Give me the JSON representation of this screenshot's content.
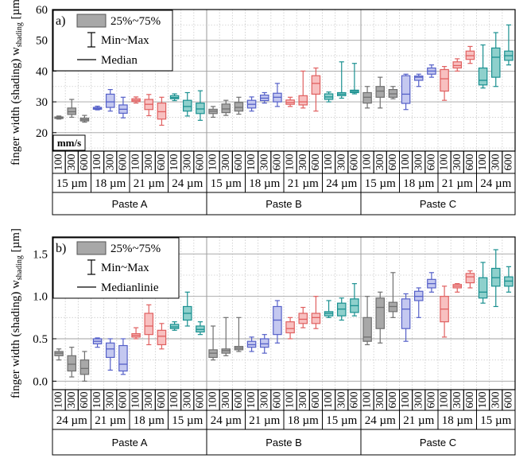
{
  "chart_data": [
    {
      "type": "boxplot",
      "panel_label": "a)",
      "ylabel_main": "finger width (shading) w",
      "ylabel_sub": "shading",
      "ylabel_unit": " [µm]",
      "ylim": [
        14,
        60
      ],
      "yticks": [
        20,
        30,
        40,
        50,
        60
      ],
      "grid": true,
      "legend": {
        "placement": "top-left",
        "box": "25%~75%",
        "whisker": "Min~Max",
        "median": "Median"
      },
      "speed_label": "mm/s",
      "pastes": [
        "Paste A",
        "Paste B",
        "Paste C"
      ],
      "widths": [
        "15 µm",
        "18 µm",
        "21 µm",
        "24 µm"
      ],
      "speeds": [
        "100",
        "300",
        "600"
      ],
      "series": [
        {
          "paste": "Paste A",
          "width": "15 µm",
          "color": "#707070",
          "fill": "#a8a8a8",
          "boxes": [
            {
              "speed": "100",
              "min": 24.4,
              "q1": 24.6,
              "median": 24.8,
              "q3": 25.1,
              "max": 25.4
            },
            {
              "speed": "300",
              "min": 25.0,
              "q1": 25.9,
              "median": 26.8,
              "q3": 28.0,
              "max": 30.8
            },
            {
              "speed": "600",
              "min": 23.4,
              "q1": 23.8,
              "median": 24.2,
              "q3": 24.7,
              "max": 25.6
            }
          ]
        },
        {
          "paste": "Paste A",
          "width": "18 µm",
          "color": "#5560c8",
          "fill": "#c4c8f0",
          "boxes": [
            {
              "speed": "100",
              "min": 27.4,
              "q1": 27.6,
              "median": 27.9,
              "q3": 28.2,
              "max": 28.6
            },
            {
              "speed": "300",
              "min": 27.0,
              "q1": 28.2,
              "median": 30.0,
              "q3": 32.5,
              "max": 34.0
            },
            {
              "speed": "600",
              "min": 24.8,
              "q1": 26.3,
              "median": 27.6,
              "q3": 29.0,
              "max": 31.5
            }
          ]
        },
        {
          "paste": "Paste A",
          "width": "21 µm",
          "color": "#e06060",
          "fill": "#f8c0c0",
          "boxes": [
            {
              "speed": "100",
              "min": 29.6,
              "q1": 30.1,
              "median": 30.5,
              "q3": 31.0,
              "max": 31.6
            },
            {
              "speed": "300",
              "min": 25.5,
              "q1": 27.5,
              "median": 29.2,
              "q3": 30.8,
              "max": 32.4
            },
            {
              "speed": "600",
              "min": 22.4,
              "q1": 24.4,
              "median": 26.8,
              "q3": 29.6,
              "max": 31.5
            }
          ]
        },
        {
          "paste": "Paste A",
          "width": "24 µm",
          "color": "#1a9090",
          "fill": "#8ed0cc",
          "boxes": [
            {
              "speed": "100",
              "min": 30.4,
              "q1": 31.0,
              "median": 31.4,
              "q3": 32.0,
              "max": 32.6
            },
            {
              "speed": "300",
              "min": 25.4,
              "q1": 27.0,
              "median": 28.5,
              "q3": 30.5,
              "max": 33.0
            },
            {
              "speed": "600",
              "min": 24.0,
              "q1": 26.2,
              "median": 27.7,
              "q3": 29.6,
              "max": 33.6
            }
          ]
        },
        {
          "paste": "Paste B",
          "width": "15 µm",
          "color": "#707070",
          "fill": "#a8a8a8",
          "boxes": [
            {
              "speed": "100",
              "min": 25.0,
              "q1": 26.2,
              "median": 27.0,
              "q3": 27.6,
              "max": 28.5
            },
            {
              "speed": "300",
              "min": 25.6,
              "q1": 26.5,
              "median": 27.7,
              "q3": 29.3,
              "max": 30.5
            },
            {
              "speed": "600",
              "min": 26.0,
              "q1": 27.0,
              "median": 28.2,
              "q3": 29.8,
              "max": 31.5
            }
          ]
        },
        {
          "paste": "Paste B",
          "width": "18 µm",
          "color": "#5560c8",
          "fill": "#c4c8f0",
          "boxes": [
            {
              "speed": "100",
              "min": 27.0,
              "q1": 28.0,
              "median": 29.2,
              "q3": 30.5,
              "max": 31.6
            },
            {
              "speed": "300",
              "min": 29.6,
              "q1": 30.4,
              "median": 31.2,
              "q3": 32.2,
              "max": 33.0
            },
            {
              "speed": "600",
              "min": 28.5,
              "q1": 30.0,
              "median": 31.5,
              "q3": 32.8,
              "max": 36.0
            }
          ]
        },
        {
          "paste": "Paste B",
          "width": "21 µm",
          "color": "#e06060",
          "fill": "#f8c0c0",
          "boxes": [
            {
              "speed": "100",
              "min": 28.5,
              "q1": 29.2,
              "median": 29.8,
              "q3": 30.6,
              "max": 31.5
            },
            {
              "speed": "300",
              "min": 28.0,
              "q1": 29.0,
              "median": 30.0,
              "q3": 32.0,
              "max": 40.0
            },
            {
              "speed": "600",
              "min": 27.0,
              "q1": 32.5,
              "median": 36.0,
              "q3": 38.5,
              "max": 41.0
            }
          ]
        },
        {
          "paste": "Paste B",
          "width": "24 µm",
          "color": "#1a9090",
          "fill": "#8ed0cc",
          "boxes": [
            {
              "speed": "100",
              "min": 30.0,
              "q1": 30.8,
              "median": 31.6,
              "q3": 32.6,
              "max": 33.2
            },
            {
              "speed": "300",
              "min": 31.2,
              "q1": 32.0,
              "median": 32.5,
              "q3": 33.0,
              "max": 43.0
            },
            {
              "speed": "600",
              "min": 32.6,
              "q1": 33.0,
              "median": 33.4,
              "q3": 33.8,
              "max": 42.5
            }
          ]
        },
        {
          "paste": "Paste C",
          "width": "15 µm",
          "color": "#707070",
          "fill": "#a8a8a8",
          "boxes": [
            {
              "speed": "100",
              "min": 28.0,
              "q1": 29.6,
              "median": 31.5,
              "q3": 33.0,
              "max": 35.0
            },
            {
              "speed": "300",
              "min": 28.0,
              "q1": 31.5,
              "median": 33.5,
              "q3": 35.0,
              "max": 38.0
            },
            {
              "speed": "600",
              "min": 31.0,
              "q1": 31.5,
              "median": 32.6,
              "q3": 34.0,
              "max": 35.0
            }
          ]
        },
        {
          "paste": "Paste C",
          "width": "18 µm",
          "color": "#5560c8",
          "fill": "#c4c8f0",
          "boxes": [
            {
              "speed": "100",
              "min": 27.5,
              "q1": 29.5,
              "median": 32.5,
              "q3": 38.5,
              "max": 39.0
            },
            {
              "speed": "300",
              "min": 35.0,
              "q1": 37.0,
              "median": 38.0,
              "q3": 38.4,
              "max": 39.0
            },
            {
              "speed": "600",
              "min": 38.0,
              "q1": 39.0,
              "median": 40.0,
              "q3": 41.0,
              "max": 42.0
            }
          ]
        },
        {
          "paste": "Paste C",
          "width": "21 µm",
          "color": "#e06060",
          "fill": "#f8c0c0",
          "boxes": [
            {
              "speed": "100",
              "min": 30.5,
              "q1": 33.5,
              "median": 37.5,
              "q3": 40.5,
              "max": 41.5
            },
            {
              "speed": "300",
              "min": 40.0,
              "q1": 41.0,
              "median": 41.8,
              "q3": 43.0,
              "max": 44.0
            },
            {
              "speed": "600",
              "min": 42.5,
              "q1": 43.8,
              "median": 45.0,
              "q3": 46.5,
              "max": 48.0
            }
          ]
        },
        {
          "paste": "Paste C",
          "width": "24 µm",
          "color": "#1a9090",
          "fill": "#8ed0cc",
          "boxes": [
            {
              "speed": "100",
              "min": 34.5,
              "q1": 35.5,
              "median": 37.0,
              "q3": 41.0,
              "max": 48.5
            },
            {
              "speed": "300",
              "min": 35.0,
              "q1": 38.0,
              "median": 44.5,
              "q3": 47.5,
              "max": 52.5
            },
            {
              "speed": "600",
              "min": 42.0,
              "q1": 43.5,
              "median": 45.0,
              "q3": 46.5,
              "max": 55.0
            }
          ]
        }
      ]
    },
    {
      "type": "boxplot",
      "panel_label": "b)",
      "ylabel_main": "finger width (shading) w",
      "ylabel_sub": "shading",
      "ylabel_unit": " [µm]",
      "ylim": [
        -0.1,
        1.7
      ],
      "yticks": [
        0.0,
        0.5,
        1.0,
        1.5
      ],
      "grid": true,
      "legend": {
        "placement": "top-left",
        "box": "25%~75%",
        "whisker": "Min~Max",
        "median": "Medianlinie"
      },
      "pastes": [
        "Paste A",
        "Paste B",
        "Paste C"
      ],
      "widths": [
        "24 µm",
        "21 µm",
        "18 µm",
        "15 µm"
      ],
      "speeds": [
        "100",
        "300",
        "600"
      ],
      "series": [
        {
          "paste": "Paste A",
          "width": "24 µm",
          "color": "#707070",
          "fill": "#a8a8a8",
          "boxes": [
            {
              "speed": "100",
              "min": 0.25,
              "q1": 0.3,
              "median": 0.33,
              "q3": 0.35,
              "max": 0.38
            },
            {
              "speed": "300",
              "min": 0.05,
              "q1": 0.12,
              "median": 0.2,
              "q3": 0.3,
              "max": 0.4
            },
            {
              "speed": "600",
              "min": 0.0,
              "q1": 0.08,
              "median": 0.15,
              "q3": 0.25,
              "max": 0.35
            }
          ]
        },
        {
          "paste": "Paste A",
          "width": "21 µm",
          "color": "#5560c8",
          "fill": "#c4c8f0",
          "boxes": [
            {
              "speed": "100",
              "min": 0.4,
              "q1": 0.44,
              "median": 0.47,
              "q3": 0.5,
              "max": 0.51
            },
            {
              "speed": "300",
              "min": 0.13,
              "q1": 0.28,
              "median": 0.38,
              "q3": 0.45,
              "max": 0.5
            },
            {
              "speed": "600",
              "min": 0.08,
              "q1": 0.12,
              "median": 0.2,
              "q3": 0.42,
              "max": 0.5
            }
          ]
        },
        {
          "paste": "Paste A",
          "width": "18 µm",
          "color": "#e06060",
          "fill": "#f8c0c0",
          "boxes": [
            {
              "speed": "100",
              "min": 0.5,
              "q1": 0.52,
              "median": 0.54,
              "q3": 0.56,
              "max": 0.63
            },
            {
              "speed": "300",
              "min": 0.43,
              "q1": 0.55,
              "median": 0.65,
              "q3": 0.8,
              "max": 0.9
            },
            {
              "speed": "600",
              "min": 0.38,
              "q1": 0.43,
              "median": 0.53,
              "q3": 0.6,
              "max": 0.68
            }
          ]
        },
        {
          "paste": "Paste A",
          "width": "15 µm",
          "color": "#1a9090",
          "fill": "#8ed0cc",
          "boxes": [
            {
              "speed": "100",
              "min": 0.6,
              "q1": 0.62,
              "median": 0.64,
              "q3": 0.67,
              "max": 0.7
            },
            {
              "speed": "300",
              "min": 0.65,
              "q1": 0.72,
              "median": 0.8,
              "q3": 0.88,
              "max": 1.05
            },
            {
              "speed": "600",
              "min": 0.55,
              "q1": 0.58,
              "median": 0.61,
              "q3": 0.65,
              "max": 0.7
            }
          ]
        },
        {
          "paste": "Paste B",
          "width": "24 µm",
          "color": "#707070",
          "fill": "#a8a8a8",
          "boxes": [
            {
              "speed": "100",
              "min": 0.25,
              "q1": 0.28,
              "median": 0.33,
              "q3": 0.37,
              "max": 0.65
            },
            {
              "speed": "300",
              "min": 0.3,
              "q1": 0.33,
              "median": 0.36,
              "q3": 0.38,
              "max": 0.75
            },
            {
              "speed": "600",
              "min": 0.35,
              "q1": 0.37,
              "median": 0.39,
              "q3": 0.41,
              "max": 0.75
            }
          ]
        },
        {
          "paste": "Paste B",
          "width": "21 µm",
          "color": "#5560c8",
          "fill": "#c4c8f0",
          "boxes": [
            {
              "speed": "100",
              "min": 0.35,
              "q1": 0.4,
              "median": 0.43,
              "q3": 0.47,
              "max": 0.52
            },
            {
              "speed": "300",
              "min": 0.33,
              "q1": 0.4,
              "median": 0.44,
              "q3": 0.5,
              "max": 0.55
            },
            {
              "speed": "600",
              "min": 0.45,
              "q1": 0.55,
              "median": 0.72,
              "q3": 0.88,
              "max": 0.95
            }
          ]
        },
        {
          "paste": "Paste B",
          "width": "18 µm",
          "color": "#e06060",
          "fill": "#f8c0c0",
          "boxes": [
            {
              "speed": "100",
              "min": 0.5,
              "q1": 0.57,
              "median": 0.62,
              "q3": 0.7,
              "max": 0.75
            },
            {
              "speed": "300",
              "min": 0.63,
              "q1": 0.68,
              "median": 0.73,
              "q3": 0.8,
              "max": 0.87
            },
            {
              "speed": "600",
              "min": 0.62,
              "q1": 0.68,
              "median": 0.75,
              "q3": 0.8,
              "max": 1.0
            }
          ]
        },
        {
          "paste": "Paste B",
          "width": "15 µm",
          "color": "#1a9090",
          "fill": "#8ed0cc",
          "boxes": [
            {
              "speed": "100",
              "min": 0.75,
              "q1": 0.77,
              "median": 0.8,
              "q3": 0.82,
              "max": 0.95
            },
            {
              "speed": "300",
              "min": 0.72,
              "q1": 0.77,
              "median": 0.85,
              "q3": 0.92,
              "max": 0.98
            },
            {
              "speed": "600",
              "min": 0.77,
              "q1": 0.81,
              "median": 0.89,
              "q3": 0.97,
              "max": 1.15
            }
          ]
        },
        {
          "paste": "Paste C",
          "width": "24 µm",
          "color": "#707070",
          "fill": "#a8a8a8",
          "boxes": [
            {
              "speed": "100",
              "min": 0.43,
              "q1": 0.47,
              "median": 0.52,
              "q3": 0.75,
              "max": 1.0
            },
            {
              "speed": "300",
              "min": 0.45,
              "q1": 0.62,
              "median": 0.87,
              "q3": 0.98,
              "max": 1.05
            },
            {
              "speed": "600",
              "min": 0.75,
              "q1": 0.82,
              "median": 0.88,
              "q3": 0.93,
              "max": 1.28
            }
          ]
        },
        {
          "paste": "Paste C",
          "width": "21 µm",
          "color": "#5560c8",
          "fill": "#c4c8f0",
          "boxes": [
            {
              "speed": "100",
              "min": 0.47,
              "q1": 0.62,
              "median": 0.85,
              "q3": 0.97,
              "max": 1.03
            },
            {
              "speed": "300",
              "min": 0.75,
              "q1": 0.95,
              "median": 1.0,
              "q3": 1.06,
              "max": 1.1
            },
            {
              "speed": "600",
              "min": 1.05,
              "q1": 1.1,
              "median": 1.15,
              "q3": 1.2,
              "max": 1.28
            }
          ]
        },
        {
          "paste": "Paste C",
          "width": "18 µm",
          "color": "#e06060",
          "fill": "#f8c0c0",
          "boxes": [
            {
              "speed": "100",
              "min": 0.52,
              "q1": 0.7,
              "median": 0.85,
              "q3": 1.0,
              "max": 1.12
            },
            {
              "speed": "300",
              "min": 1.05,
              "q1": 1.1,
              "median": 1.12,
              "q3": 1.14,
              "max": 1.15
            },
            {
              "speed": "600",
              "min": 1.1,
              "q1": 1.16,
              "median": 1.23,
              "q3": 1.27,
              "max": 1.3
            }
          ]
        },
        {
          "paste": "Paste C",
          "width": "15 µm",
          "color": "#1a9090",
          "fill": "#8ed0cc",
          "boxes": [
            {
              "speed": "100",
              "min": 0.92,
              "q1": 0.98,
              "median": 1.05,
              "q3": 1.22,
              "max": 1.4
            },
            {
              "speed": "300",
              "min": 0.88,
              "q1": 1.12,
              "median": 1.22,
              "q3": 1.33,
              "max": 1.55
            },
            {
              "speed": "600",
              "min": 1.05,
              "q1": 1.12,
              "median": 1.18,
              "q3": 1.23,
              "max": 1.35
            }
          ]
        }
      ]
    }
  ]
}
